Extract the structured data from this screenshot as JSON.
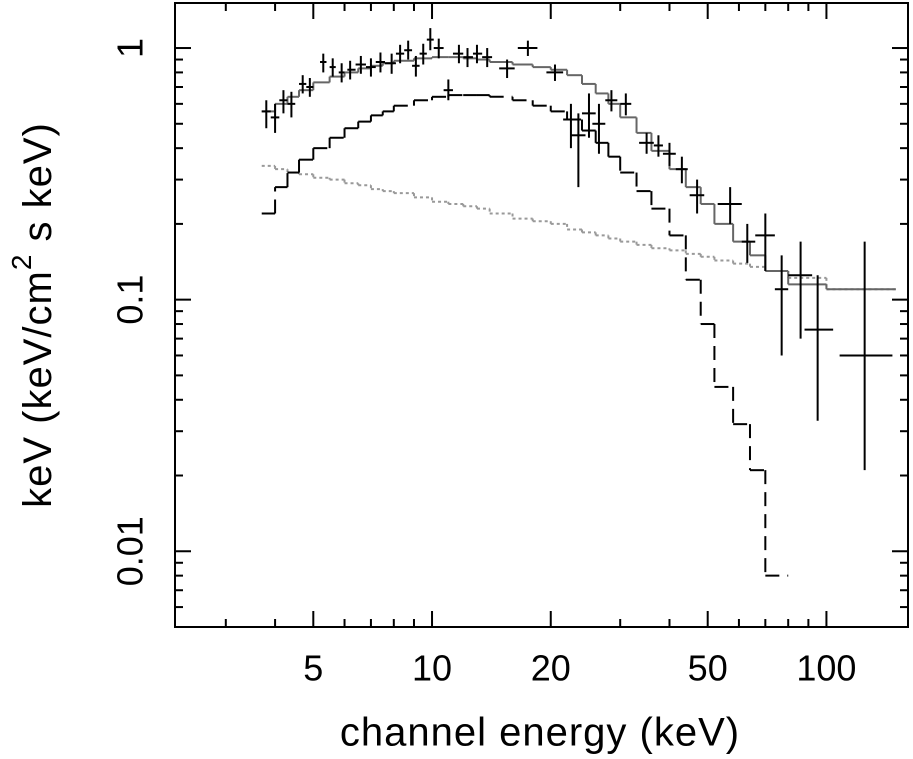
{
  "chart_data": {
    "type": "spectrum",
    "xlabel": "channel energy (keV)",
    "ylabel": [
      "keV (keV/cm",
      "2",
      " s keV)"
    ],
    "xlog": true,
    "ylog": true,
    "xlim": [
      2.23,
      161
    ],
    "ylim": [
      0.005,
      1.51
    ],
    "xticks": [
      5,
      10,
      20,
      50,
      100
    ],
    "xminorticks": [
      3,
      4,
      6,
      7,
      8,
      9,
      30,
      40,
      60,
      70,
      80,
      90
    ],
    "yticks": [
      0.01,
      0.1,
      1
    ],
    "yminorticks": [
      0.006,
      0.007,
      0.008,
      0.009,
      0.02,
      0.03,
      0.04,
      0.05,
      0.06,
      0.07,
      0.08,
      0.09,
      0.2,
      0.3,
      0.4,
      0.5,
      0.6,
      0.7,
      0.8,
      0.9
    ],
    "data": {
      "color": "#000000",
      "x": [
        3.8,
        4.0,
        4.2,
        4.4,
        4.7,
        4.9,
        5.3,
        5.6,
        5.9,
        6.2,
        6.6,
        7.0,
        7.4,
        7.9,
        8.3,
        8.7,
        9.1,
        9.5,
        9.9,
        10.4,
        11.0,
        11.7,
        12.3,
        13.0,
        13.8,
        15.5,
        17.5,
        20.5,
        22.5,
        23.5,
        25,
        26.5,
        28.5,
        31,
        35,
        37.5,
        40,
        43,
        47,
        57,
        63,
        70,
        77,
        86,
        95,
        125
      ],
      "xlow": [
        3.7,
        3.9,
        4.1,
        4.3,
        4.6,
        4.8,
        5.2,
        5.5,
        5.8,
        6.1,
        6.4,
        6.8,
        7.2,
        7.6,
        8.1,
        8.5,
        8.9,
        9.3,
        9.7,
        10.1,
        10.7,
        11.3,
        12.0,
        12.7,
        13.4,
        14.8,
        16.5,
        19.5,
        21.5,
        22.5,
        24,
        25.5,
        27.5,
        30,
        33.5,
        36.5,
        38.5,
        41.5,
        45,
        53,
        61,
        66,
        74,
        80,
        88,
        108
      ],
      "xhigh": [
        3.9,
        4.1,
        4.3,
        4.5,
        4.8,
        5.0,
        5.4,
        5.7,
        6.0,
        6.4,
        6.8,
        7.2,
        7.6,
        8.1,
        8.5,
        8.9,
        9.3,
        9.7,
        10.1,
        10.7,
        11.3,
        12.0,
        12.7,
        13.4,
        14.2,
        16.2,
        18.5,
        21.5,
        23.5,
        24.5,
        26,
        27.5,
        29.5,
        32,
        36.5,
        38.5,
        41.5,
        44.5,
        49,
        61,
        66,
        74,
        80,
        92,
        104,
        147
      ],
      "values": [
        0.56,
        0.53,
        0.62,
        0.6,
        0.72,
        0.7,
        0.88,
        0.84,
        0.8,
        0.82,
        0.86,
        0.84,
        0.88,
        0.87,
        0.95,
        0.98,
        0.85,
        0.95,
        1.08,
        1.0,
        0.68,
        0.95,
        0.92,
        0.95,
        0.92,
        0.83,
        1.0,
        0.8,
        0.52,
        0.45,
        0.55,
        0.5,
        0.62,
        0.6,
        0.42,
        0.41,
        0.38,
        0.33,
        0.26,
        0.24,
        0.17,
        0.18,
        0.11,
        0.125,
        0.076,
        0.06
      ],
      "ylow": [
        0.48,
        0.46,
        0.55,
        0.53,
        0.66,
        0.64,
        0.8,
        0.77,
        0.73,
        0.75,
        0.79,
        0.77,
        0.8,
        0.79,
        0.87,
        0.9,
        0.77,
        0.86,
        0.98,
        0.91,
        0.62,
        0.87,
        0.84,
        0.87,
        0.84,
        0.76,
        0.93,
        0.74,
        0.4,
        0.28,
        0.44,
        0.38,
        0.56,
        0.54,
        0.38,
        0.37,
        0.34,
        0.29,
        0.22,
        0.2,
        0.14,
        0.13,
        0.06,
        0.07,
        0.033,
        0.021
      ],
      "yhigh": [
        0.62,
        0.6,
        0.68,
        0.67,
        0.78,
        0.76,
        0.95,
        0.91,
        0.87,
        0.89,
        0.93,
        0.91,
        0.96,
        0.95,
        1.03,
        1.07,
        0.93,
        1.04,
        1.2,
        1.09,
        0.75,
        1.03,
        1.0,
        1.03,
        1.0,
        0.9,
        1.07,
        0.86,
        0.6,
        0.55,
        0.66,
        0.6,
        0.68,
        0.66,
        0.46,
        0.45,
        0.42,
        0.37,
        0.3,
        0.28,
        0.2,
        0.22,
        0.15,
        0.17,
        0.125,
        0.17
      ]
    },
    "bins": [
      3.7,
      4.0,
      4.3,
      4.6,
      5.0,
      5.5,
      6,
      6.5,
      7,
      7.5,
      8,
      9,
      10,
      11,
      12,
      13,
      14,
      16,
      18,
      20,
      22,
      24,
      26,
      28,
      30,
      33,
      36,
      40,
      44,
      48,
      52,
      58,
      64,
      70,
      80,
      100,
      150
    ],
    "models": [
      {
        "color": "#999999",
        "dash": "dotted",
        "values": [
          0.34,
          0.33,
          0.32,
          0.315,
          0.305,
          0.3,
          0.29,
          0.285,
          0.275,
          0.27,
          0.265,
          0.255,
          0.245,
          0.24,
          0.235,
          0.23,
          0.22,
          0.21,
          0.205,
          0.2,
          0.19,
          0.185,
          0.18,
          0.175,
          0.17,
          0.165,
          0.16,
          0.157,
          0.152,
          0.148,
          0.143,
          0.139,
          0.135,
          0.13,
          0.122,
          0.11
        ]
      },
      {
        "color": "#000000",
        "dash": "dashed",
        "values": [
          0.22,
          0.28,
          0.32,
          0.36,
          0.4,
          0.44,
          0.48,
          0.51,
          0.54,
          0.56,
          0.59,
          0.62,
          0.64,
          0.65,
          0.65,
          0.65,
          0.64,
          0.62,
          0.59,
          0.56,
          0.52,
          0.47,
          0.42,
          0.37,
          0.32,
          0.27,
          0.23,
          0.18,
          0.12,
          0.08,
          0.045,
          0.032,
          0.021,
          0.008,
          null,
          null
        ]
      },
      {
        "color": "#666666",
        "dash": "solid",
        "values": [
          0.56,
          0.6,
          0.64,
          0.68,
          0.73,
          0.77,
          0.8,
          0.83,
          0.85,
          0.87,
          0.89,
          0.91,
          0.92,
          0.92,
          0.91,
          0.9,
          0.88,
          0.86,
          0.84,
          0.82,
          0.78,
          0.72,
          0.66,
          0.6,
          0.53,
          0.46,
          0.39,
          0.33,
          0.28,
          0.24,
          0.2,
          0.17,
          0.15,
          0.13,
          0.115,
          0.11
        ]
      }
    ]
  }
}
